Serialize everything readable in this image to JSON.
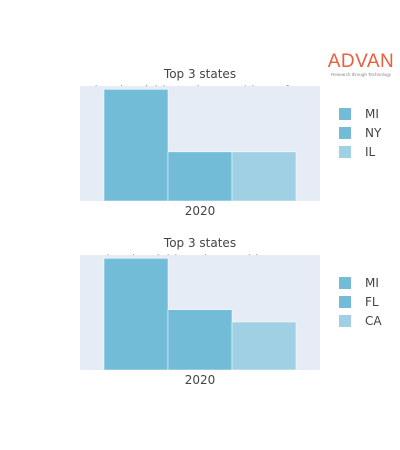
{
  "brand": {
    "name": "ADVAN",
    "tagline": "Research through Technology",
    "color": "#e8603c"
  },
  "colors": {
    "plot_background": "#e5ecf6",
    "text": "#444444"
  },
  "chart_data": [
    {
      "type": "bar",
      "title": "Top 3 states",
      "subtitle": "Livonia Michigan drew residents from",
      "categories": [
        "2020"
      ],
      "series": [
        {
          "name": "MI",
          "values": [
            1.0
          ],
          "color": "#73bcd8"
        },
        {
          "name": "NY",
          "values": [
            0.44
          ],
          "color": "#73bcd8"
        },
        {
          "name": "IL",
          "values": [
            0.44
          ],
          "color": "#9fd0e3"
        }
      ],
      "ylim": [
        0,
        1.03
      ],
      "grid": false,
      "legend": "right"
    },
    {
      "type": "bar",
      "title": "Top 3 states",
      "subtitle": "Livonia Michigan lost residents to",
      "categories": [
        "2020"
      ],
      "series": [
        {
          "name": "MI",
          "values": [
            1.0
          ],
          "color": "#73bcd8"
        },
        {
          "name": "FL",
          "values": [
            0.54
          ],
          "color": "#73bcd8"
        },
        {
          "name": "CA",
          "values": [
            0.43
          ],
          "color": "#9fd0e3"
        }
      ],
      "ylim": [
        0,
        1.03
      ],
      "grid": false,
      "legend": "right"
    }
  ]
}
